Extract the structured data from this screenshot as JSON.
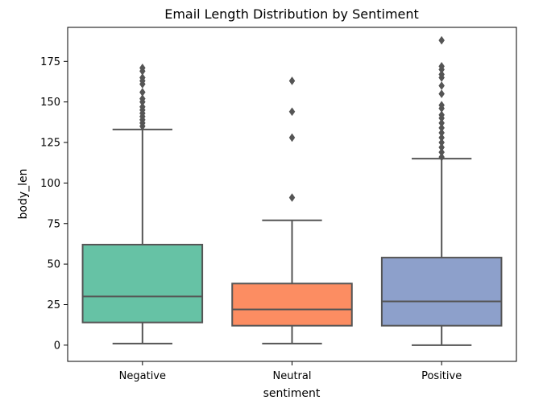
{
  "chart_data": {
    "type": "box",
    "title": "Email Length Distribution by Sentiment",
    "xlabel": "sentiment",
    "ylabel": "body_len",
    "ylim": [
      -10,
      196
    ],
    "yticks": [
      0,
      25,
      50,
      75,
      100,
      125,
      150,
      175
    ],
    "grid": false,
    "legend": "none",
    "categories": [
      "Negative",
      "Neutral",
      "Positive"
    ],
    "boxes": [
      {
        "category": "Negative",
        "color": "#66c2a5",
        "whisker_low": 1,
        "q1": 14,
        "median": 30,
        "q3": 62,
        "whisker_high": 133,
        "outliers": [
          135,
          137,
          139,
          141,
          143,
          145,
          147,
          150,
          152,
          156,
          161,
          163,
          165,
          169,
          171
        ]
      },
      {
        "category": "Neutral",
        "color": "#fc8d62",
        "whisker_low": 1,
        "q1": 12,
        "median": 22,
        "q3": 38,
        "whisker_high": 77,
        "outliers": [
          91,
          128,
          144,
          163
        ]
      },
      {
        "category": "Positive",
        "color": "#8da0cb",
        "whisker_low": 0,
        "q1": 12,
        "median": 27,
        "q3": 54,
        "whisker_high": 115,
        "outliers": [
          116,
          119,
          122,
          125,
          128,
          131,
          134,
          137,
          140,
          142,
          146,
          148,
          155,
          160,
          165,
          167,
          170,
          172,
          188
        ]
      }
    ]
  }
}
